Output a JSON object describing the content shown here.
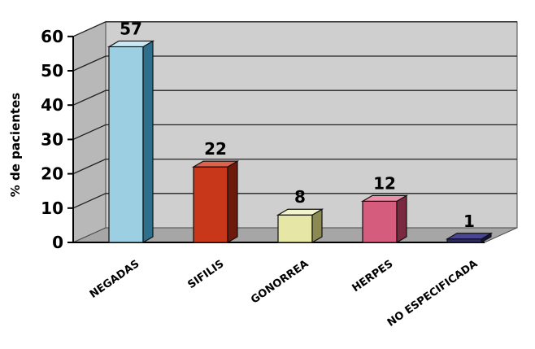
{
  "chart_data": {
    "type": "bar",
    "title": "",
    "xlabel": "",
    "ylabel": "% de pacientes",
    "categories": [
      "NEGADAS",
      "SIFILIS",
      "GONORREA",
      "HERPES",
      "NO ESPECIFICADA"
    ],
    "values": [
      57,
      22,
      8,
      12,
      1
    ],
    "ylim": [
      0,
      60
    ],
    "yticks": [
      0,
      10,
      20,
      30,
      40,
      50,
      60
    ],
    "grid": true,
    "legend": "none",
    "colors": [
      "#9ccfe2",
      "#c8371a",
      "#e6e6a6",
      "#d65c7e",
      "#2d2a66"
    ],
    "colors_dark": [
      "#2f6f8e",
      "#6e1a0a",
      "#8a8a52",
      "#7a2a40",
      "#14123a"
    ],
    "colors_light": [
      "#c9e9f4",
      "#e0604a",
      "#f4f4cc",
      "#ec8fa9",
      "#4a4790"
    ],
    "wall_color": "#cfcfcf",
    "floor_color": "#a6a6a6"
  }
}
